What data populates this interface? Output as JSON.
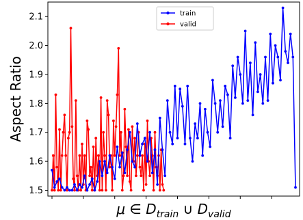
{
  "chart_data": {
    "type": "line",
    "title": "",
    "xlabel": "μ ∈ D_train ∪ D_valid",
    "xlabel_parts": {
      "mu": "μ",
      "in": " ∈ ",
      "d1": "D",
      "sub1": "train",
      "cup": " ∪ ",
      "d2": "D",
      "sub2": "valid"
    },
    "ylabel": "Aspect Ratio",
    "xlim": [
      0,
      194
    ],
    "ylim": [
      1.48,
      2.15
    ],
    "yticks": [
      1.5,
      1.6,
      1.7,
      1.8,
      1.9,
      2.0,
      2.1
    ],
    "ytick_labels": [
      "1.5",
      "1.6",
      "1.7",
      "1.8",
      "1.9",
      "2.0",
      "2.1"
    ],
    "grid": false,
    "legend_position": "top-center",
    "series": [
      {
        "name": "valid",
        "color": "#ff0000",
        "x": [
          0,
          1,
          2,
          3,
          4,
          5,
          6,
          7,
          8,
          9,
          10,
          11,
          12,
          13,
          14,
          15,
          16,
          17,
          18,
          19,
          20,
          21,
          22,
          23,
          24,
          25,
          26,
          27,
          28,
          29,
          30,
          31,
          32,
          33,
          34,
          35,
          36,
          37,
          38,
          39,
          40,
          41,
          42,
          43,
          44,
          45,
          46,
          47,
          48,
          49,
          50,
          51,
          52,
          53,
          54,
          55,
          56,
          57,
          58,
          59,
          60,
          61,
          62,
          63,
          64,
          65,
          66,
          67,
          68,
          69,
          70,
          71,
          72,
          73,
          74,
          75,
          76,
          77,
          78,
          79,
          80,
          81,
          82,
          83,
          84,
          85,
          86,
          87,
          88,
          89
        ],
        "y": [
          1.5,
          1.62,
          1.5,
          1.83,
          1.58,
          1.5,
          1.71,
          1.5,
          1.62,
          1.7,
          1.76,
          1.62,
          1.5,
          1.68,
          1.7,
          2.06,
          1.72,
          1.54,
          1.5,
          1.81,
          1.55,
          1.5,
          1.62,
          1.5,
          1.66,
          1.52,
          1.62,
          1.5,
          1.74,
          1.71,
          1.55,
          1.58,
          1.5,
          1.65,
          1.5,
          1.68,
          1.55,
          1.62,
          1.5,
          1.82,
          1.5,
          1.7,
          1.62,
          1.5,
          1.81,
          1.76,
          1.58,
          1.62,
          1.5,
          1.74,
          1.62,
          1.72,
          1.83,
          1.99,
          1.62,
          1.7,
          1.5,
          1.55,
          1.78,
          1.65,
          1.55,
          1.71,
          1.53,
          1.5,
          1.72,
          1.6,
          1.68,
          1.55,
          1.62,
          1.7,
          1.58,
          1.55,
          1.62,
          1.5,
          1.66,
          1.52,
          1.74,
          1.6,
          1.55,
          1.68,
          1.62,
          1.5,
          1.7,
          1.58,
          1.55,
          1.62,
          1.5,
          1.64,
          1.52,
          1.5
        ]
      },
      {
        "name": "train",
        "color": "#0000ff",
        "x": [
          0,
          2,
          4,
          6,
          8,
          10,
          12,
          14,
          16,
          18,
          20,
          22,
          24,
          26,
          28,
          30,
          32,
          34,
          36,
          38,
          40,
          42,
          44,
          46,
          48,
          50,
          52,
          54,
          56,
          58,
          60,
          62,
          64,
          66,
          68,
          70,
          72,
          74,
          76,
          78,
          80,
          82,
          84,
          86,
          88,
          90,
          92,
          94,
          96,
          98,
          100,
          102,
          104,
          106,
          108,
          110,
          112,
          114,
          116,
          118,
          120,
          122,
          124,
          126,
          128,
          130,
          132,
          134,
          136,
          138,
          140,
          142,
          144,
          146,
          148,
          150,
          152,
          154,
          156,
          158,
          160,
          162,
          164,
          166,
          168,
          170,
          172,
          174,
          176,
          178,
          180,
          182,
          184,
          186,
          188,
          190,
          192,
          194
        ],
        "y": [
          1.57,
          1.51,
          1.53,
          1.54,
          1.51,
          1.5,
          1.51,
          1.5,
          1.5,
          1.52,
          1.5,
          1.52,
          1.51,
          1.55,
          1.5,
          1.52,
          1.54,
          1.5,
          1.53,
          1.6,
          1.55,
          1.6,
          1.56,
          1.62,
          1.58,
          1.54,
          1.65,
          1.58,
          1.63,
          1.56,
          1.64,
          1.7,
          1.6,
          1.58,
          1.73,
          1.62,
          1.66,
          1.68,
          1.6,
          1.7,
          1.56,
          1.64,
          1.52,
          1.75,
          1.64,
          1.55,
          1.81,
          1.7,
          1.66,
          1.86,
          1.68,
          1.85,
          1.79,
          1.66,
          1.86,
          1.68,
          1.6,
          1.73,
          1.68,
          1.8,
          1.62,
          1.78,
          1.7,
          1.65,
          1.88,
          1.8,
          1.7,
          1.81,
          1.72,
          1.86,
          1.83,
          1.68,
          1.93,
          1.82,
          1.96,
          1.9,
          1.8,
          2.05,
          1.81,
          1.94,
          1.76,
          2.01,
          1.84,
          1.9,
          1.8,
          1.96,
          1.81,
          2.04,
          1.87,
          2.0,
          1.96,
          1.88,
          2.13,
          1.98,
          1.94,
          2.04,
          1.96,
          1.51
        ]
      }
    ]
  }
}
